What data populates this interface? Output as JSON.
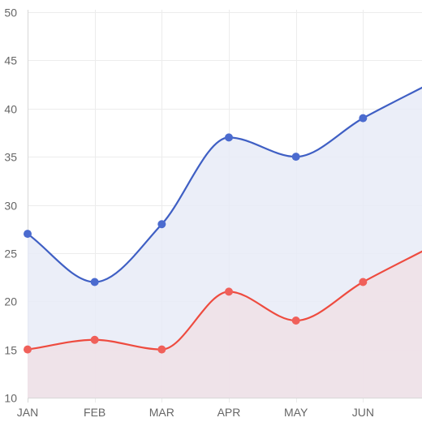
{
  "chart_data": {
    "type": "area",
    "categories": [
      "JAN",
      "FEB",
      "MAR",
      "APR",
      "MAY",
      "JUN"
    ],
    "series": [
      {
        "values": [
          27,
          22,
          28,
          37,
          35,
          39
        ],
        "line_color": "#3f5fc4",
        "fill_color": "#e8ebf7",
        "point_color": "#4b6bcf"
      },
      {
        "values": [
          15,
          16,
          15,
          21,
          18,
          22
        ],
        "line_color": "#ee4b3f",
        "fill_color": "#f0e0e6",
        "point_color": "#f0605a"
      }
    ],
    "y_ticks": [
      "10",
      "15",
      "20",
      "25",
      "30",
      "35",
      "40",
      "45",
      "50"
    ],
    "ylim": [
      10,
      50
    ],
    "grid": true,
    "curve": "smooth",
    "title": "",
    "xlabel": "",
    "ylabel": ""
  }
}
